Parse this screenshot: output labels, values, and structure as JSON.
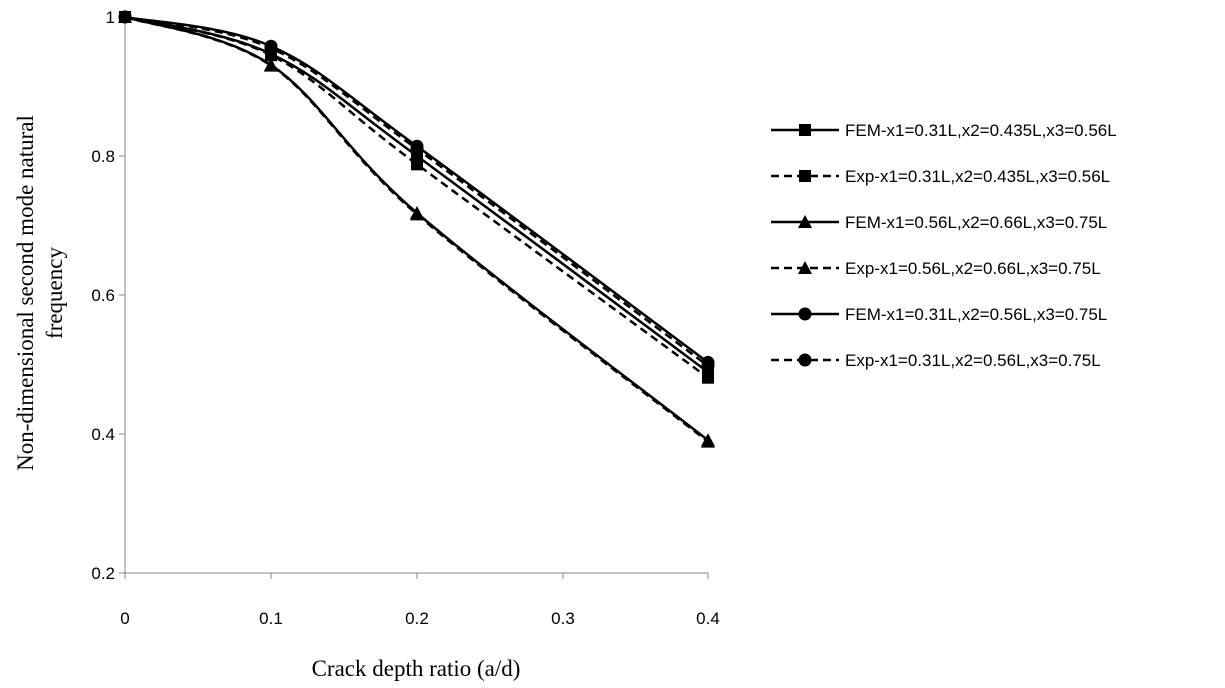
{
  "chart_data": {
    "type": "line",
    "xlabel": "Crack depth ratio (a/d)",
    "ylabel_lines": [
      "Non-dimensional  second mode natural",
      "frequency"
    ],
    "x_tick_labels": [
      "0",
      "0.1",
      "0.2",
      "0.3",
      "0.4"
    ],
    "y_tick_labels": [
      "0.2",
      "0.4",
      "0.6",
      "0.8",
      "1"
    ],
    "ylim": [
      0.2,
      1.0
    ],
    "x_values": [
      0,
      0.1,
      0.2,
      0.4
    ],
    "grid": false,
    "legend_position": "right",
    "series": [
      {
        "name": "FEM-x1=0.31L,x2=0.435L,x3=0.56L",
        "marker": "square",
        "dash": "solid",
        "values": [
          1.0,
          0.947,
          0.8,
          0.489
        ]
      },
      {
        "name": "Exp-x1=0.31L,x2=0.435L,x3=0.56L",
        "marker": "square",
        "dash": "dashed",
        "values": [
          1.0,
          0.945,
          0.788,
          0.481
        ]
      },
      {
        "name": "FEM-x1=0.56L,x2=0.66L,x3=0.75L",
        "marker": "triangle",
        "dash": "solid",
        "values": [
          1.0,
          0.931,
          0.718,
          0.391
        ]
      },
      {
        "name": "Exp-x1=0.56L,x2=0.66L,x3=0.75L",
        "marker": "triangle",
        "dash": "dashed",
        "values": [
          1.0,
          0.93,
          0.716,
          0.389
        ]
      },
      {
        "name": "FEM-x1=0.31L,x2=0.56L,x3=0.75L",
        "marker": "circle",
        "dash": "solid",
        "values": [
          1.0,
          0.958,
          0.814,
          0.503
        ]
      },
      {
        "name": "Exp-x1=0.31L,x2=0.56L,x3=0.75L",
        "marker": "circle",
        "dash": "dashed",
        "values": [
          1.0,
          0.955,
          0.81,
          0.498
        ]
      }
    ]
  }
}
